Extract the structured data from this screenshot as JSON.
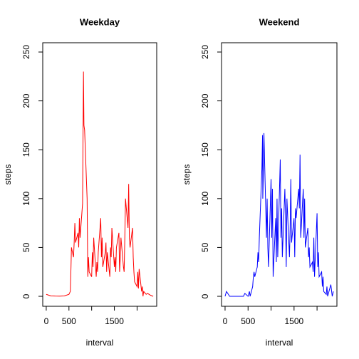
{
  "chart_data": [
    {
      "type": "line",
      "title": "Weekday",
      "x_label": "interval",
      "y_label": "steps",
      "color": "#ff0000",
      "x": [
        0,
        100,
        200,
        300,
        400,
        500,
        530,
        545,
        555,
        600,
        615,
        630,
        645,
        700,
        715,
        730,
        745,
        800,
        815,
        820,
        830,
        845,
        900,
        915,
        930,
        945,
        1000,
        1015,
        1030,
        1045,
        1100,
        1115,
        1130,
        1145,
        1200,
        1215,
        1230,
        1245,
        1300,
        1315,
        1330,
        1345,
        1400,
        1415,
        1430,
        1445,
        1500,
        1515,
        1530,
        1545,
        1600,
        1615,
        1630,
        1645,
        1700,
        1715,
        1730,
        1745,
        1800,
        1815,
        1830,
        1845,
        1900,
        1915,
        1930,
        1945,
        2000,
        2015,
        2030,
        2045,
        2100,
        2115,
        2130,
        2145,
        2200,
        2230,
        2300,
        2355
      ],
      "values": [
        2,
        0.5,
        0.3,
        0.2,
        0.5,
        2,
        5,
        30,
        50,
        40,
        55,
        75,
        55,
        65,
        50,
        80,
        60,
        95,
        200,
        230,
        175,
        170,
        100,
        20,
        40,
        25,
        20,
        45,
        30,
        60,
        20,
        35,
        25,
        45,
        80,
        40,
        60,
        30,
        45,
        55,
        25,
        45,
        20,
        50,
        40,
        70,
        30,
        40,
        25,
        50,
        65,
        25,
        40,
        60,
        30,
        25,
        60,
        100,
        70,
        115,
        60,
        50,
        70,
        40,
        25,
        15,
        10,
        25,
        8,
        28,
        5,
        10,
        0,
        5,
        2,
        3,
        1,
        0
      ],
      "xlim": [
        -77,
        2432
      ],
      "ylim": [
        -10.2,
        259.5
      ],
      "xticks": [
        0,
        500,
        1500
      ],
      "x_unlabeled_ticks": [
        1000,
        2000
      ],
      "yticks": [
        0,
        50,
        100,
        150,
        200,
        250
      ]
    },
    {
      "type": "line",
      "title": "Weekend",
      "x_label": "interval",
      "y_label": "steps",
      "color": "#0000ff",
      "x": [
        0,
        30,
        100,
        200,
        300,
        400,
        430,
        500,
        530,
        545,
        600,
        615,
        630,
        645,
        700,
        715,
        730,
        745,
        800,
        815,
        820,
        830,
        845,
        900,
        915,
        930,
        945,
        1000,
        1015,
        1030,
        1045,
        1100,
        1115,
        1130,
        1145,
        1200,
        1215,
        1230,
        1245,
        1300,
        1315,
        1330,
        1345,
        1400,
        1415,
        1430,
        1445,
        1500,
        1515,
        1530,
        1545,
        1600,
        1615,
        1630,
        1645,
        1700,
        1715,
        1730,
        1745,
        1800,
        1815,
        1830,
        1845,
        1900,
        1915,
        1930,
        1945,
        2000,
        2015,
        2030,
        2045,
        2100,
        2115,
        2130,
        2145,
        2200,
        2215,
        2230,
        2300,
        2330,
        2355
      ],
      "values": [
        0,
        5,
        0,
        0,
        0,
        0,
        3,
        0,
        5,
        0,
        10,
        20,
        25,
        20,
        30,
        45,
        35,
        60,
        130,
        165,
        100,
        120,
        167,
        60,
        100,
        50,
        30,
        120,
        60,
        110,
        20,
        80,
        35,
        100,
        40,
        140,
        60,
        90,
        40,
        110,
        80,
        30,
        100,
        40,
        70,
        120,
        55,
        80,
        40,
        90,
        80,
        110,
        90,
        145,
        60,
        110,
        60,
        100,
        50,
        70,
        40,
        50,
        30,
        35,
        25,
        60,
        20,
        85,
        30,
        45,
        20,
        25,
        10,
        20,
        5,
        2,
        10,
        0,
        12,
        0,
        5
      ],
      "xlim": [
        -77,
        2432
      ],
      "ylim": [
        -10.2,
        259.5
      ],
      "xticks": [
        0,
        500,
        1500
      ],
      "x_unlabeled_ticks": [
        1000,
        2000
      ],
      "yticks": [
        0,
        50,
        100,
        150,
        200,
        250
      ]
    }
  ]
}
